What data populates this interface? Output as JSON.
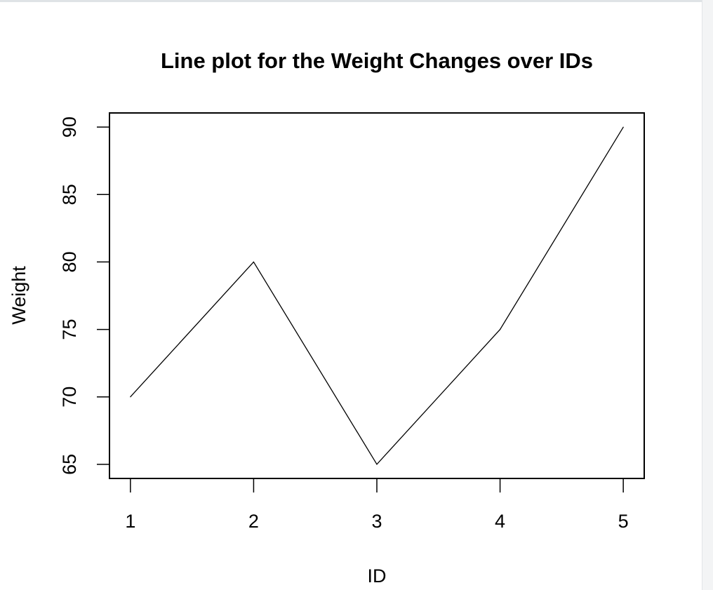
{
  "chart_data": {
    "type": "line",
    "title": "Line plot for the Weight Changes over IDs",
    "xlabel": "ID",
    "ylabel": "Weight",
    "x": [
      1,
      2,
      3,
      4,
      5
    ],
    "values": [
      70,
      80,
      65,
      75,
      90
    ],
    "xticks": [
      "1",
      "2",
      "3",
      "4",
      "5"
    ],
    "yticks": [
      "65",
      "70",
      "75",
      "80",
      "85",
      "90"
    ],
    "xlim": [
      0.83,
      5.17
    ],
    "ylim": [
      63.95,
      91.05
    ],
    "grid": false,
    "line_color": "#000000"
  }
}
